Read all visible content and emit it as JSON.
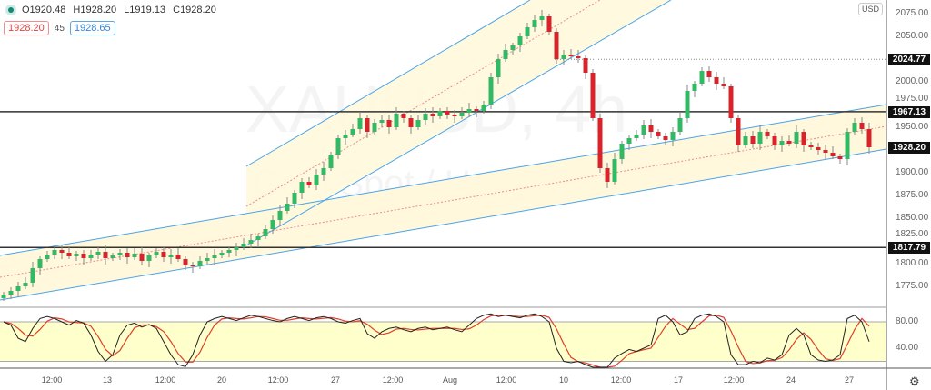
{
  "symbol_watermark": {
    "line1": "XAUUSD, 4h",
    "line2": "Gold Spot / U.S. Dollar"
  },
  "legend": {
    "open": "O1920.48",
    "high": "H1928.20",
    "low": "L1919.13",
    "close": "C1928.20"
  },
  "quote": {
    "bid": "1928.20",
    "spread": "45",
    "ask": "1928.65"
  },
  "currency": "USD",
  "price_labels": [
    {
      "value": 2024.77,
      "text": "2024.77"
    },
    {
      "value": 1967.13,
      "text": "1967.13"
    },
    {
      "value": 1928.2,
      "text": "1928.20"
    },
    {
      "value": 1817.79,
      "text": "1817.79"
    }
  ],
  "horizontal_lines": [
    1967.13,
    1817.79
  ],
  "price_ticks": [
    "2075.00",
    "2050.00",
    "2000.00",
    "1975.00",
    "1950.00",
    "1900.00",
    "1875.00",
    "1850.00",
    "1825.00",
    "1800.00",
    "1775.00"
  ],
  "oscillator_ticks": [
    "80.00",
    "40.00"
  ],
  "oscillator_band": [
    20,
    80
  ],
  "time_labels": [
    "12:00",
    "13",
    "12:00",
    "20",
    "12:00",
    "27",
    "12:00",
    "Aug",
    "12:00",
    "10",
    "12:00",
    "17",
    "12:00",
    "24",
    "27"
  ],
  "colors": {
    "up": "#33b864",
    "down": "#d8232a",
    "channel": "#4aa3e8",
    "channel_fill": "#fff8dc",
    "median": "#f08a8a",
    "stoch_k": "#222222",
    "stoch_d": "#e0402a",
    "band_fill": "#ffffcc"
  },
  "chart_data": {
    "type": "candlestick",
    "timeframe": "4h",
    "ylim": [
      1755,
      2085
    ],
    "closes": [
      1766,
      1770,
      1775,
      1779,
      1795,
      1805,
      1810,
      1815,
      1812,
      1808,
      1811,
      1806,
      1810,
      1813,
      1806,
      1809,
      1812,
      1807,
      1811,
      1803,
      1809,
      1813,
      1807,
      1810,
      1805,
      1798,
      1797,
      1803,
      1806,
      1809,
      1812,
      1815,
      1818,
      1822,
      1826,
      1830,
      1838,
      1848,
      1858,
      1866,
      1878,
      1890,
      1886,
      1898,
      1905,
      1920,
      1938,
      1942,
      1948,
      1960,
      1945,
      1955,
      1958,
      1950,
      1965,
      1960,
      1950,
      1958,
      1965,
      1962,
      1968,
      1964,
      1962,
      1966,
      1970,
      1968,
      1975,
      2005,
      2025,
      2035,
      2040,
      2050,
      2060,
      2068,
      2072,
      2055,
      2025,
      2030,
      2028,
      2026,
      2010,
      1960,
      1905,
      1890,
      1915,
      1932,
      1938,
      1942,
      1952,
      1945,
      1940,
      1936,
      1945,
      1960,
      1990,
      1998,
      2012,
      2005,
      1998,
      1995,
      1960,
      1930,
      1940,
      1932,
      1945,
      1940,
      1930,
      1935,
      1932,
      1945,
      1930,
      1928,
      1925,
      1922,
      1918,
      1915,
      1945,
      1955,
      1948,
      1928
    ],
    "stoch_k": [
      80,
      75,
      55,
      50,
      70,
      85,
      88,
      85,
      80,
      75,
      82,
      78,
      60,
      35,
      20,
      30,
      60,
      75,
      78,
      72,
      76,
      70,
      50,
      30,
      15,
      12,
      30,
      60,
      80,
      85,
      88,
      85,
      82,
      86,
      90,
      88,
      85,
      82,
      80,
      85,
      88,
      85,
      82,
      86,
      88,
      85,
      80,
      78,
      82,
      85,
      62,
      55,
      65,
      70,
      72,
      68,
      65,
      70,
      72,
      68,
      70,
      72,
      68,
      65,
      75,
      85,
      90,
      92,
      88,
      90,
      88,
      86,
      90,
      92,
      88,
      80,
      40,
      20,
      18,
      20,
      15,
      8,
      5,
      8,
      25,
      32,
      38,
      35,
      40,
      45,
      85,
      90,
      80,
      60,
      65,
      85,
      90,
      92,
      88,
      80,
      30,
      15,
      15,
      20,
      18,
      25,
      22,
      30,
      60,
      70,
      60,
      30,
      22,
      20,
      22,
      30,
      85,
      90,
      80,
      50
    ],
    "oscillator_ylim": [
      0,
      100
    ]
  }
}
